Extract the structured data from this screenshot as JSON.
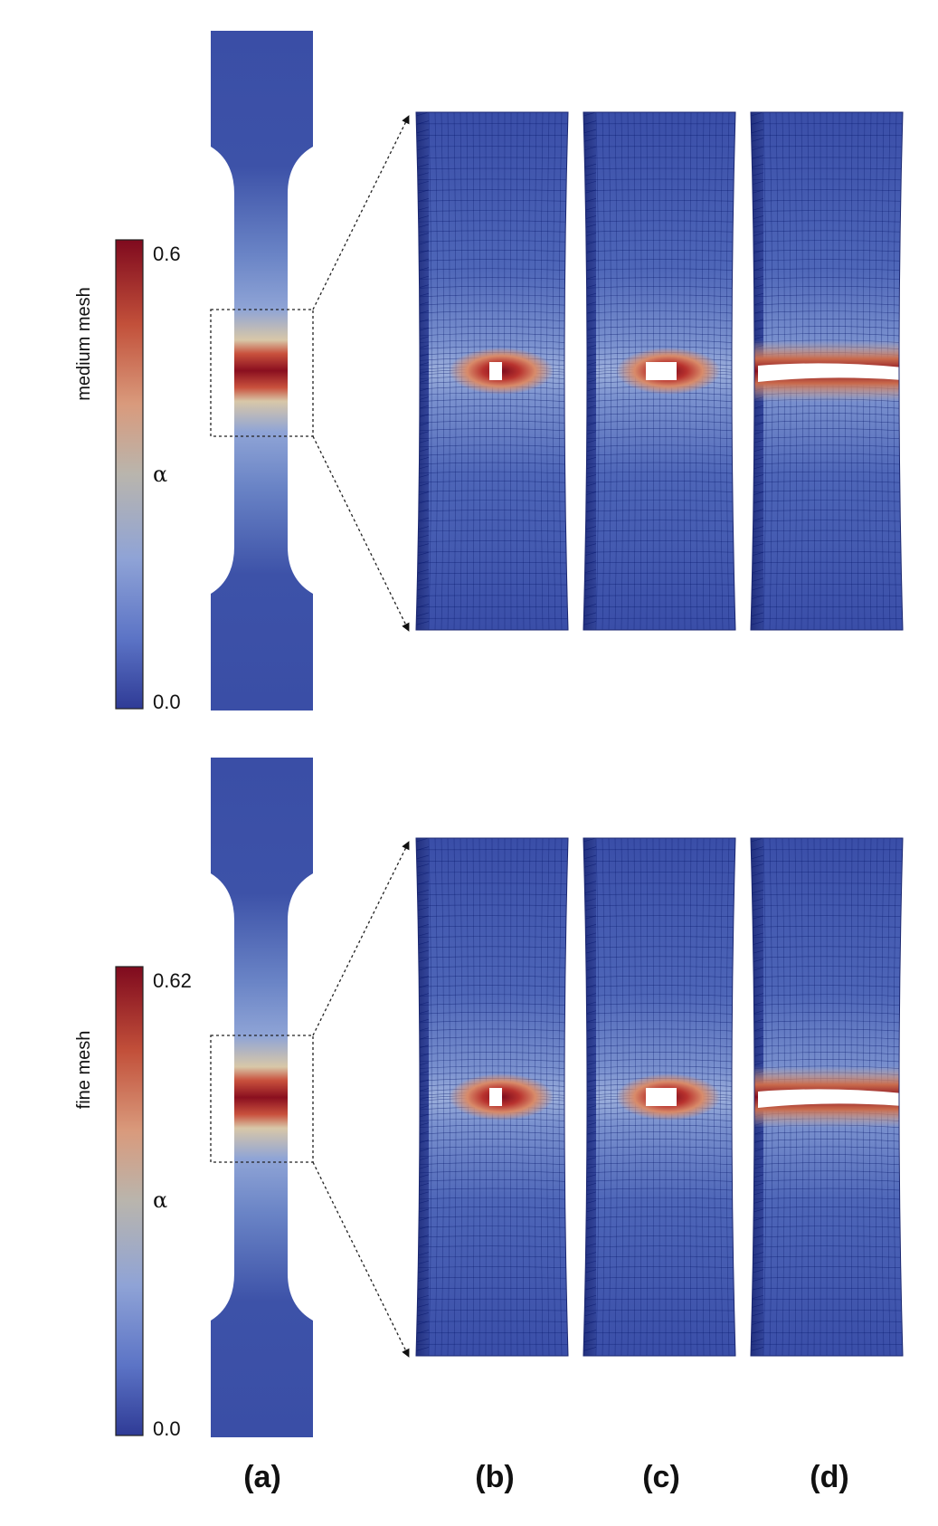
{
  "rows": [
    {
      "mesh_label": "medium mesh",
      "colorbar": {
        "max_label": "0.6",
        "min_label": "0.0",
        "symbol": "α"
      },
      "crack": "medium"
    },
    {
      "mesh_label": "fine mesh",
      "colorbar": {
        "max_label": "0.62",
        "min_label": "0.0",
        "symbol": "α"
      },
      "crack": "fine"
    }
  ],
  "panel_labels": [
    "(a)",
    "(b)",
    "(c)",
    "(d)"
  ],
  "colormap": {
    "low": "#3b4cc0",
    "mid": "#b7b7b0",
    "high": "#7f0a1e",
    "mesh_line": "#0a1a6e",
    "specimen_base": "#3f54a6"
  }
}
